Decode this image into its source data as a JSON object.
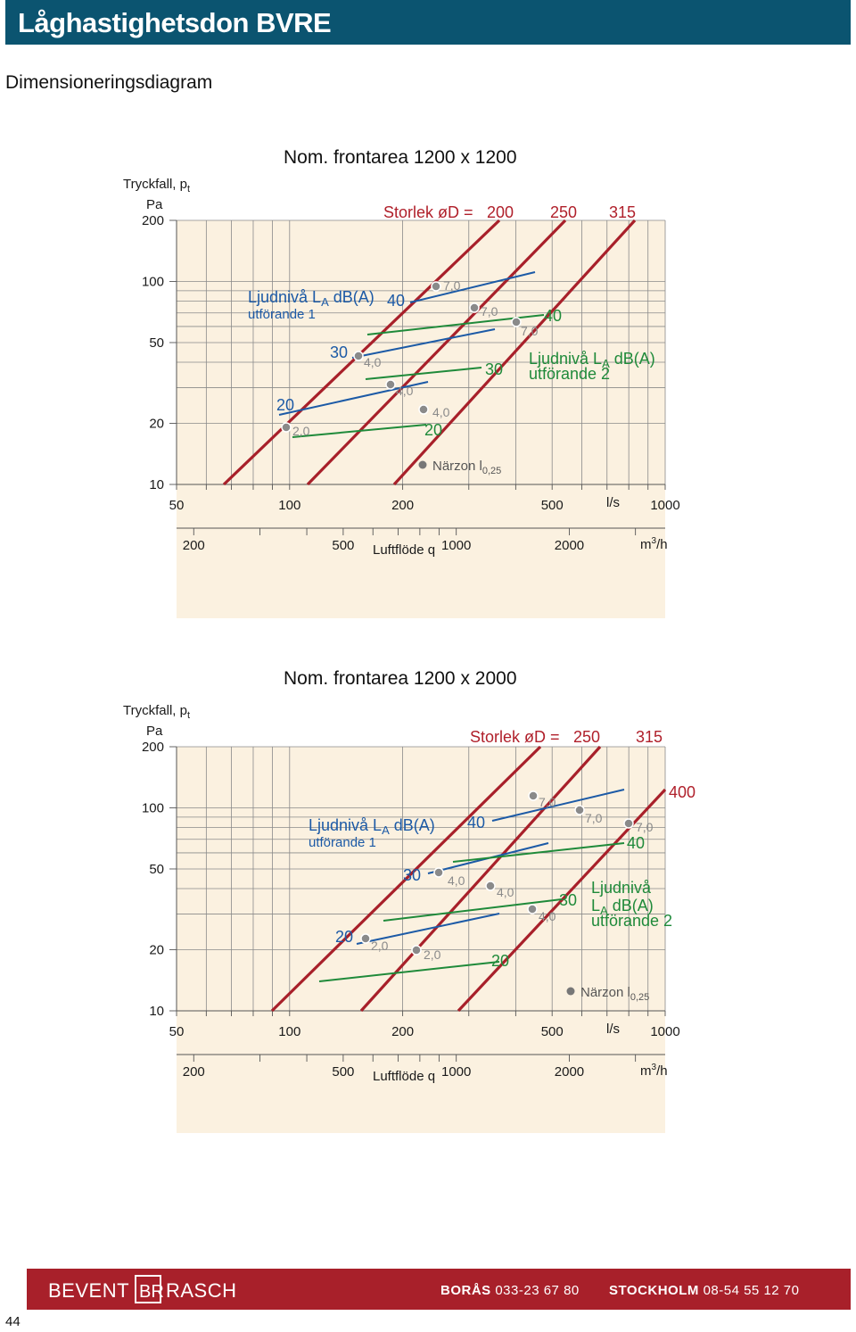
{
  "header": {
    "title": "Låghastighetsdon BVRE",
    "subtitle": "Dimensioneringsdiagram"
  },
  "colors": {
    "header": "#0b5470",
    "footer": "#a8202a",
    "plot_bg": "#fbf1e0",
    "duct_line": "#a8202a",
    "sound_1": "#1c5aa6",
    "sound_2": "#1f8a3a",
    "marker": "#8a8a8a"
  },
  "chart_data": [
    {
      "type": "line",
      "title": "Nom. frontarea 1200 x 1200",
      "ylabel": "Tryckfall, p",
      "ylabel_sub": "t",
      "yunit": "Pa",
      "xlabel": "Luftflöde q",
      "x_unit_ls": "l/s",
      "x_unit_m3h": "m",
      "x_unit_m3h_sup": "3",
      "x_unit_m3h_end": "/h",
      "y_scale": "log",
      "x_scale": "log",
      "xlim_ls": [
        50,
        1000
      ],
      "ylim": [
        10,
        200
      ],
      "y_ticks": [
        "10",
        "20",
        "50",
        "100",
        "200"
      ],
      "x_ticks_ls": [
        "50",
        "100",
        "200",
        "500",
        "1000"
      ],
      "x_ticks_m3h": [
        "200",
        "500",
        "1000",
        "2000"
      ],
      "size_prefix": "Storlek øD =",
      "sizes": [
        "200",
        "250",
        "315"
      ],
      "legend_1": {
        "title": "Ljudnivå L",
        "sub": "A",
        "unit": " dB(A)",
        "variant": "utförande 1"
      },
      "legend_2": {
        "title": "Ljudnivå L",
        "sub": "A",
        "unit": " dB(A)",
        "variant": "utförande 2"
      },
      "near_zone": {
        "label": "Närzon l",
        "sub": "0,25"
      },
      "sound_labels_1": [
        "20",
        "30",
        "40"
      ],
      "sound_labels_2": [
        "20",
        "30",
        "40"
      ],
      "velocity_labels": [
        "2,0",
        "4,0",
        "4,0",
        "4,0",
        "7,0",
        "7,0",
        "7,0"
      ]
    },
    {
      "type": "line",
      "title": "Nom. frontarea 1200 x 2000",
      "ylabel": "Tryckfall, p",
      "ylabel_sub": "t",
      "yunit": "Pa",
      "xlabel": "Luftflöde q",
      "x_unit_ls": "l/s",
      "x_unit_m3h": "m",
      "x_unit_m3h_sup": "3",
      "x_unit_m3h_end": "/h",
      "y_scale": "log",
      "x_scale": "log",
      "xlim_ls": [
        50,
        1000
      ],
      "ylim": [
        10,
        200
      ],
      "y_ticks": [
        "10",
        "20",
        "50",
        "100",
        "200"
      ],
      "x_ticks_ls": [
        "50",
        "100",
        "200",
        "500",
        "1000"
      ],
      "x_ticks_m3h": [
        "200",
        "500",
        "1000",
        "2000"
      ],
      "size_prefix": "Storlek øD =",
      "sizes": [
        "250",
        "315",
        "400"
      ],
      "legend_1": {
        "title": "Ljudnivå L",
        "sub": "A",
        "unit": " dB(A)",
        "variant": "utförande 1"
      },
      "legend_2": {
        "title": "Ljudnivå",
        "title2": "L",
        "sub": "A",
        "unit": " dB(A)",
        "variant": "utförande 2"
      },
      "near_zone": {
        "label": "Närzon l",
        "sub": "0,25"
      },
      "sound_labels_1": [
        "20",
        "30",
        "40"
      ],
      "sound_labels_2": [
        "20",
        "30",
        "40"
      ],
      "velocity_labels": [
        "2,0",
        "2,0",
        "4,0",
        "4,0",
        "4,0",
        "7,0",
        "7,0",
        "7,0"
      ]
    }
  ],
  "footer": {
    "brand": "BEVENT RASCH",
    "city1": "BORÅS",
    "phone1": "033-23 67 80",
    "city2": "STOCKHOLM",
    "phone2": "08-54 55 12 70",
    "page_number": "44"
  }
}
